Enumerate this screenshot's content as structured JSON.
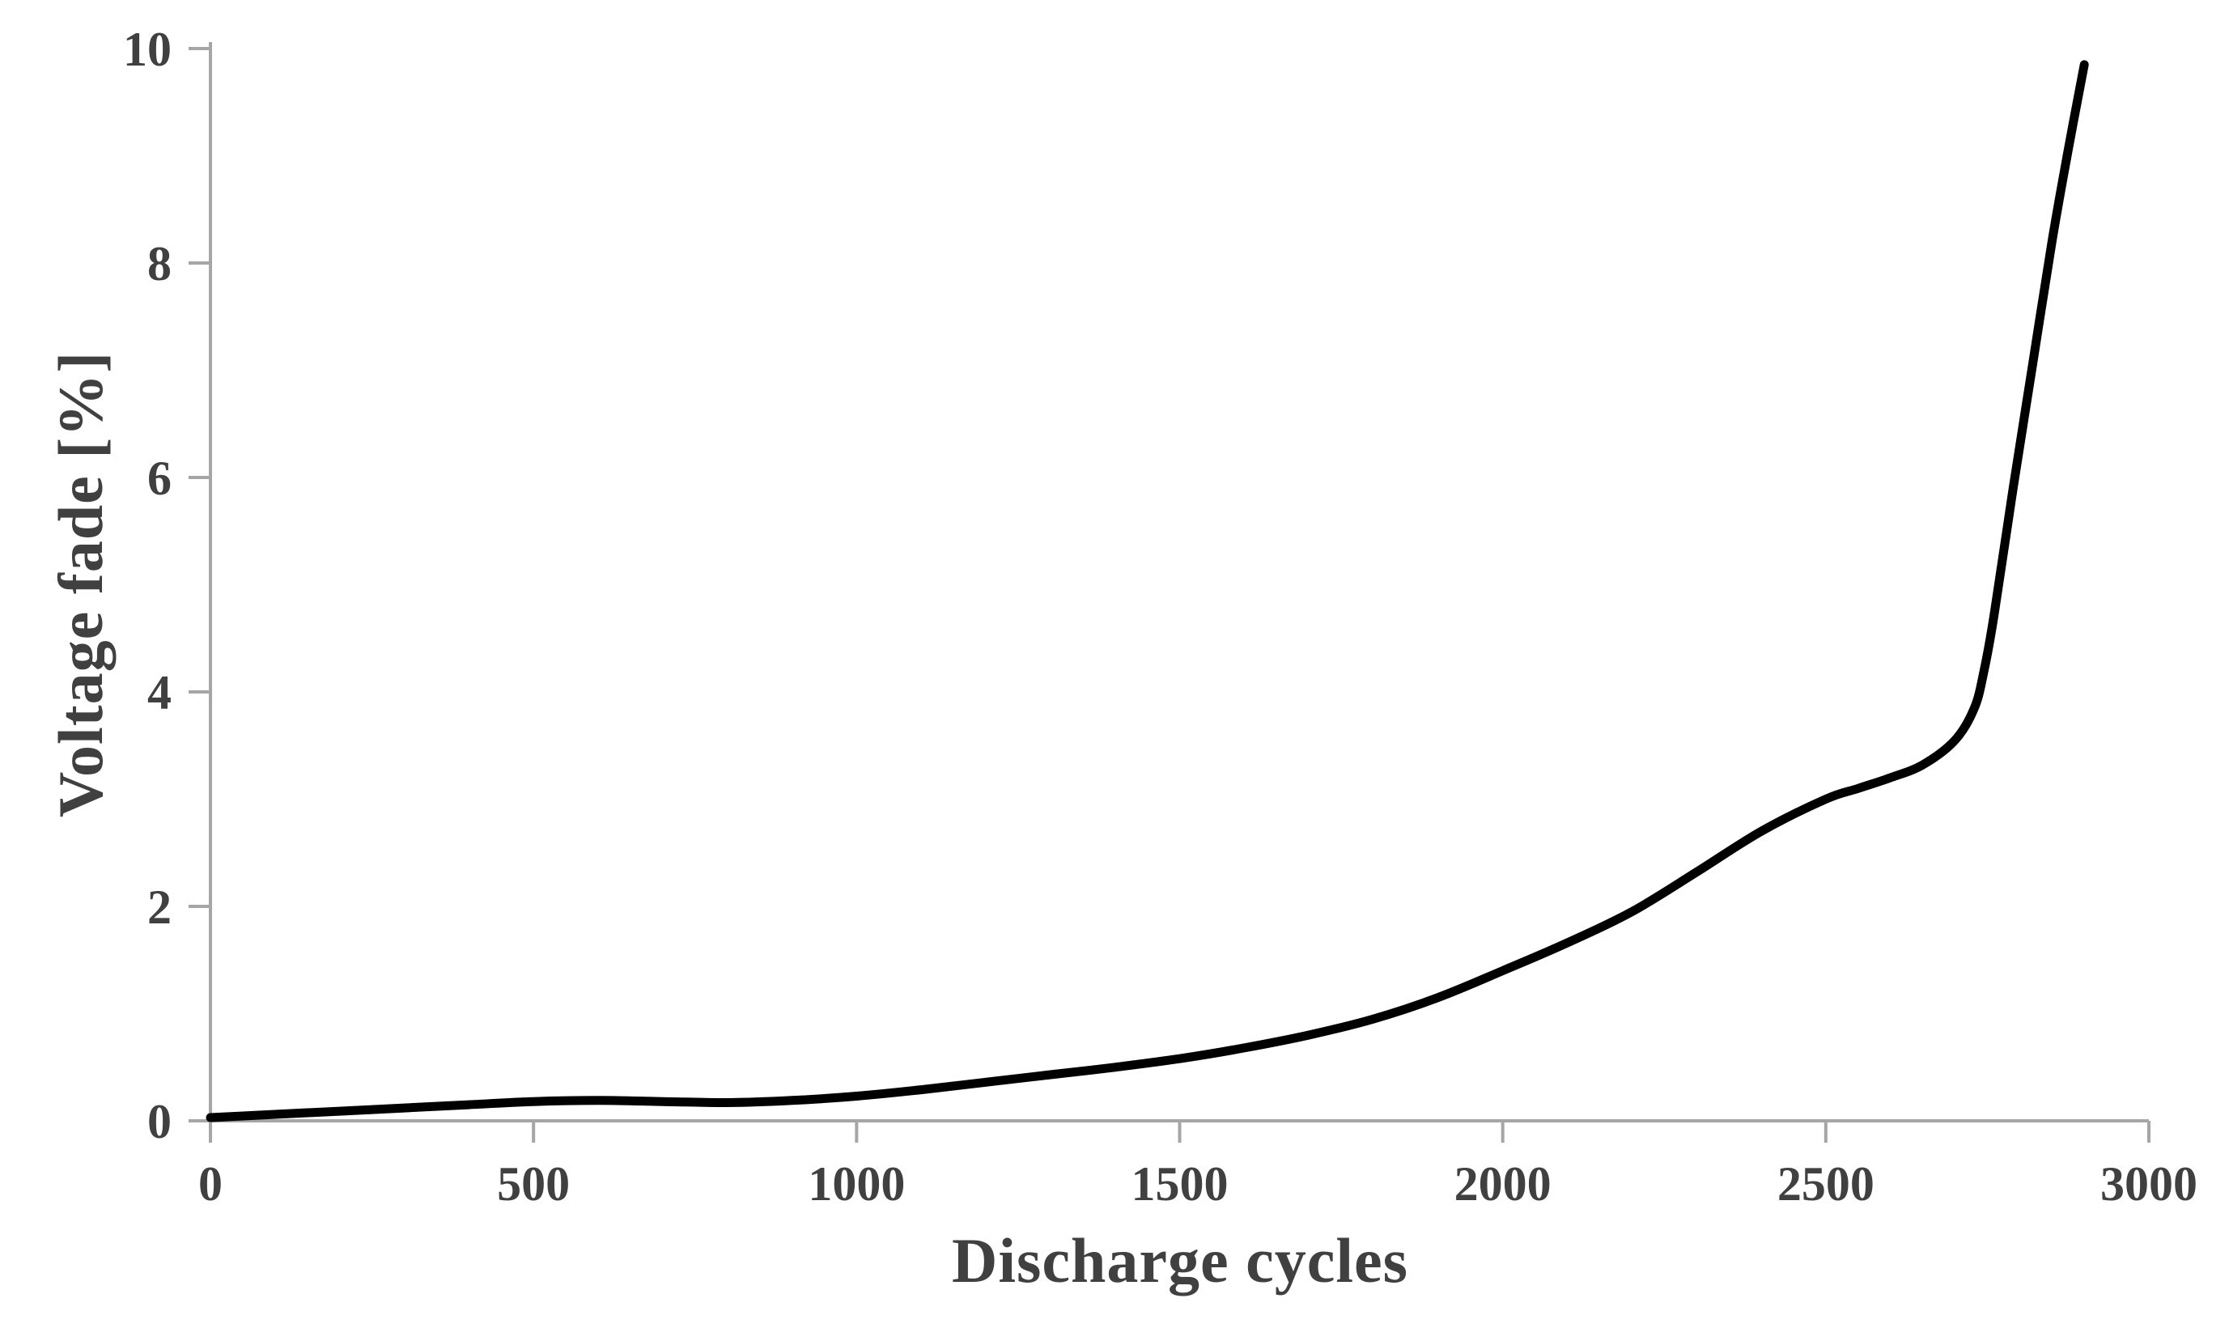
{
  "figure": {
    "background": "#ffffff"
  },
  "chart_data": {
    "type": "line",
    "title": "",
    "xlabel": "Discharge cycles",
    "ylabel": "Voltage fade [%]",
    "xlim": [
      0,
      3000
    ],
    "ylim": [
      0,
      10
    ],
    "x_ticks": [
      "0",
      "500",
      "1000",
      "1500",
      "2000",
      "2500",
      "3000"
    ],
    "x_tick_values": [
      0,
      500,
      1000,
      1500,
      2000,
      2500,
      3000
    ],
    "y_ticks": [
      "0",
      "2",
      "4",
      "6",
      "8",
      "10"
    ],
    "y_tick_values": [
      0,
      2,
      4,
      6,
      8,
      10
    ],
    "grid": false,
    "legend_position": "none",
    "colors": {
      "line": "#000000",
      "axis": "#a6a6a6",
      "text": "#404040",
      "background": "#ffffff"
    },
    "series": [
      {
        "name": "voltage-fade",
        "points": [
          [
            0,
            0.03
          ],
          [
            100,
            0.06
          ],
          [
            200,
            0.09
          ],
          [
            300,
            0.12
          ],
          [
            400,
            0.15
          ],
          [
            500,
            0.18
          ],
          [
            600,
            0.19
          ],
          [
            700,
            0.18
          ],
          [
            800,
            0.17
          ],
          [
            900,
            0.19
          ],
          [
            1000,
            0.23
          ],
          [
            1100,
            0.29
          ],
          [
            1200,
            0.36
          ],
          [
            1300,
            0.43
          ],
          [
            1400,
            0.5
          ],
          [
            1500,
            0.58
          ],
          [
            1600,
            0.68
          ],
          [
            1700,
            0.8
          ],
          [
            1800,
            0.95
          ],
          [
            1900,
            1.15
          ],
          [
            2000,
            1.4
          ],
          [
            2100,
            1.66
          ],
          [
            2200,
            1.95
          ],
          [
            2300,
            2.32
          ],
          [
            2400,
            2.7
          ],
          [
            2500,
            3.0
          ],
          [
            2550,
            3.1
          ],
          [
            2600,
            3.2
          ],
          [
            2650,
            3.32
          ],
          [
            2700,
            3.55
          ],
          [
            2730,
            3.85
          ],
          [
            2745,
            4.2
          ],
          [
            2760,
            4.7
          ],
          [
            2790,
            5.9
          ],
          [
            2820,
            7.05
          ],
          [
            2850,
            8.2
          ],
          [
            2875,
            9.05
          ],
          [
            2900,
            9.85
          ]
        ]
      }
    ]
  }
}
